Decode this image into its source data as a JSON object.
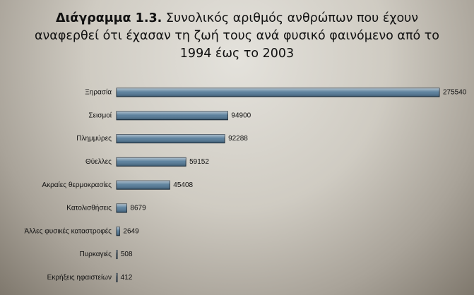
{
  "chart_data": {
    "type": "hbar",
    "title_label": "Διάγραμμα 1.3.",
    "title": "Συνολικός αριθμός ανθρώπων που έχουν αναφερθεί ότι έχασαν τη ζωή τους ανά φυσικό φαινόμενο από το 1994 έως το 2003",
    "categories": [
      "Ξηρασία",
      "Σεισμοί",
      "Πλημμύρες",
      "Θύελλες",
      "Ακραίες θερμοκρασίες",
      "Κατολισθήσεις",
      "Άλλες φυσικές καταστροφές",
      "Πυρκαγιές",
      "Εκρήξεις ηφαιστείων"
    ],
    "values": [
      275540,
      94900,
      92288,
      59152,
      45408,
      8679,
      2649,
      508,
      412
    ],
    "color": "#4d7594"
  }
}
